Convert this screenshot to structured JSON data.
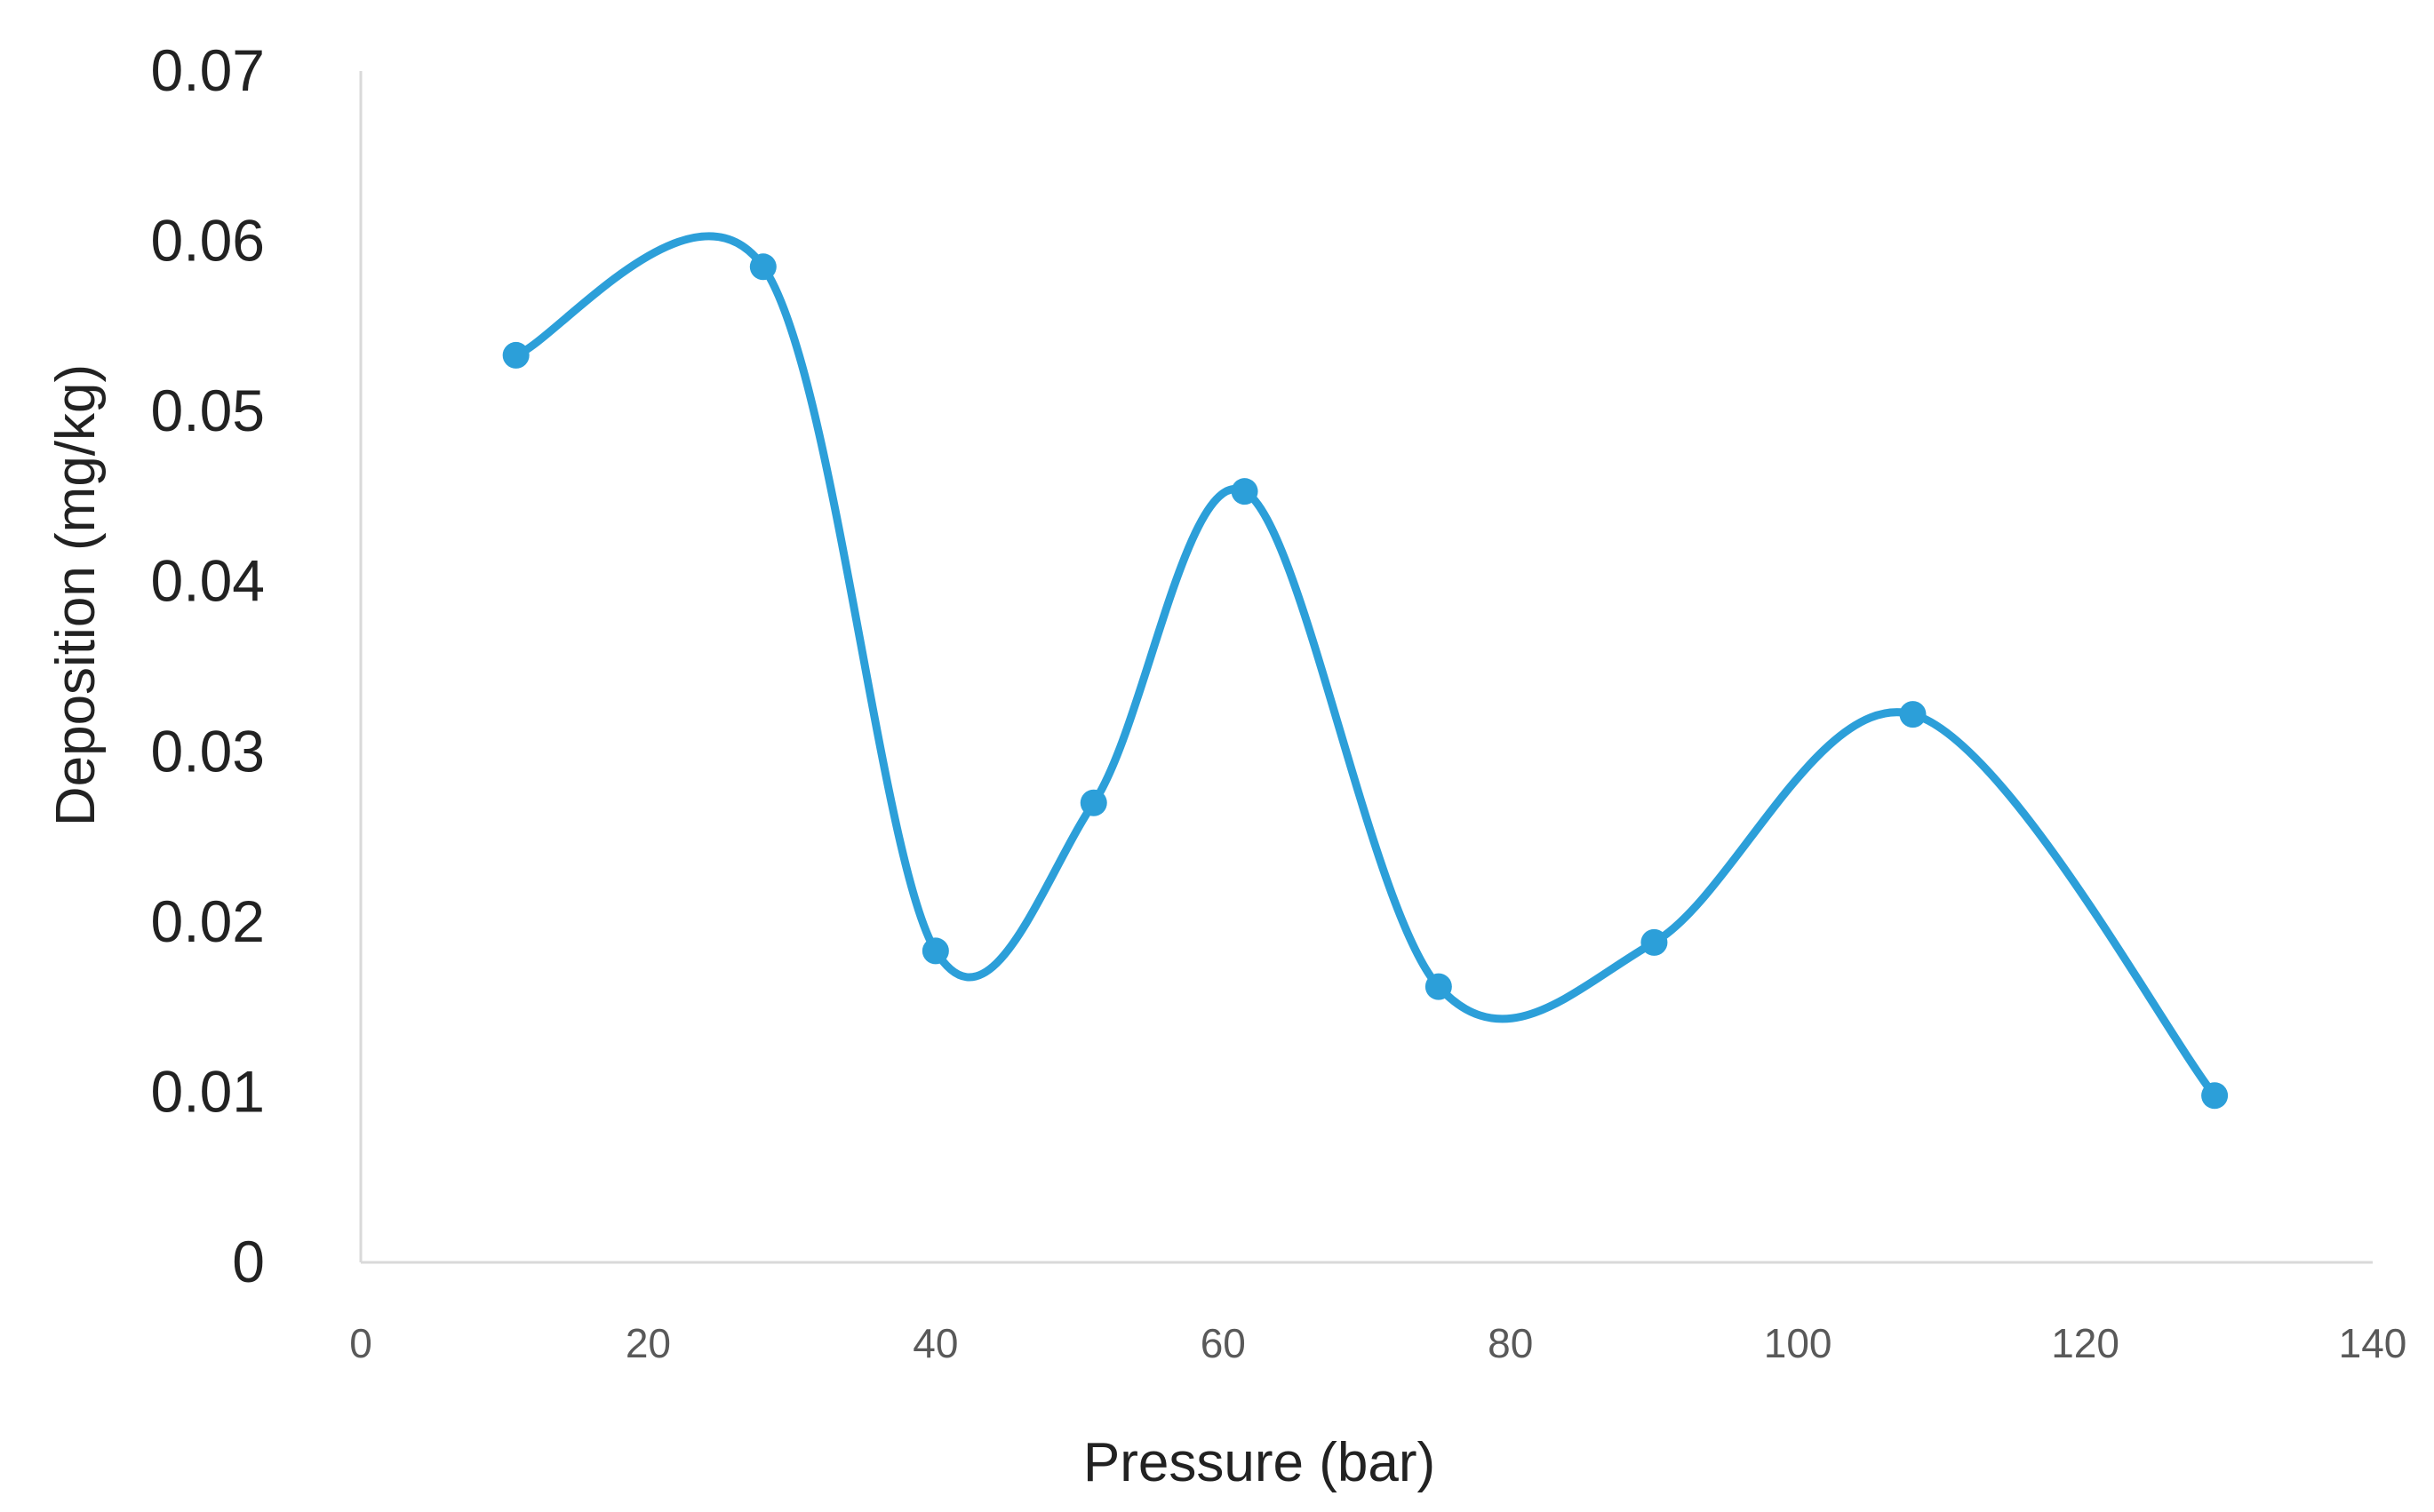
{
  "chart_data": {
    "type": "line",
    "title": "",
    "xlabel": "Pressure (bar)",
    "ylabel": "Deposition (mg/kg)",
    "xlim": [
      0,
      140
    ],
    "ylim": [
      0,
      0.07
    ],
    "x_ticks": [
      0,
      20,
      40,
      60,
      80,
      100,
      120,
      140
    ],
    "x_tick_labels": [
      "0",
      "20",
      "40",
      "60",
      "80",
      "100",
      "120",
      "140"
    ],
    "y_ticks": [
      0,
      0.01,
      0.02,
      0.03,
      0.04,
      0.05,
      0.06,
      0.07
    ],
    "y_tick_labels": [
      "0",
      "0.01",
      "0.02",
      "0.03",
      "0.04",
      "0.05",
      "0.06",
      "0.07"
    ],
    "grid": false,
    "legend": "none",
    "smooth": true,
    "series": [
      {
        "color": "#2c9fd9",
        "x": [
          10.8,
          28,
          40,
          51,
          61.5,
          75,
          90,
          108,
          129
        ],
        "y": [
          0.0533,
          0.0585,
          0.0183,
          0.027,
          0.0453,
          0.0162,
          0.0188,
          0.0322,
          0.0098
        ]
      }
    ]
  }
}
